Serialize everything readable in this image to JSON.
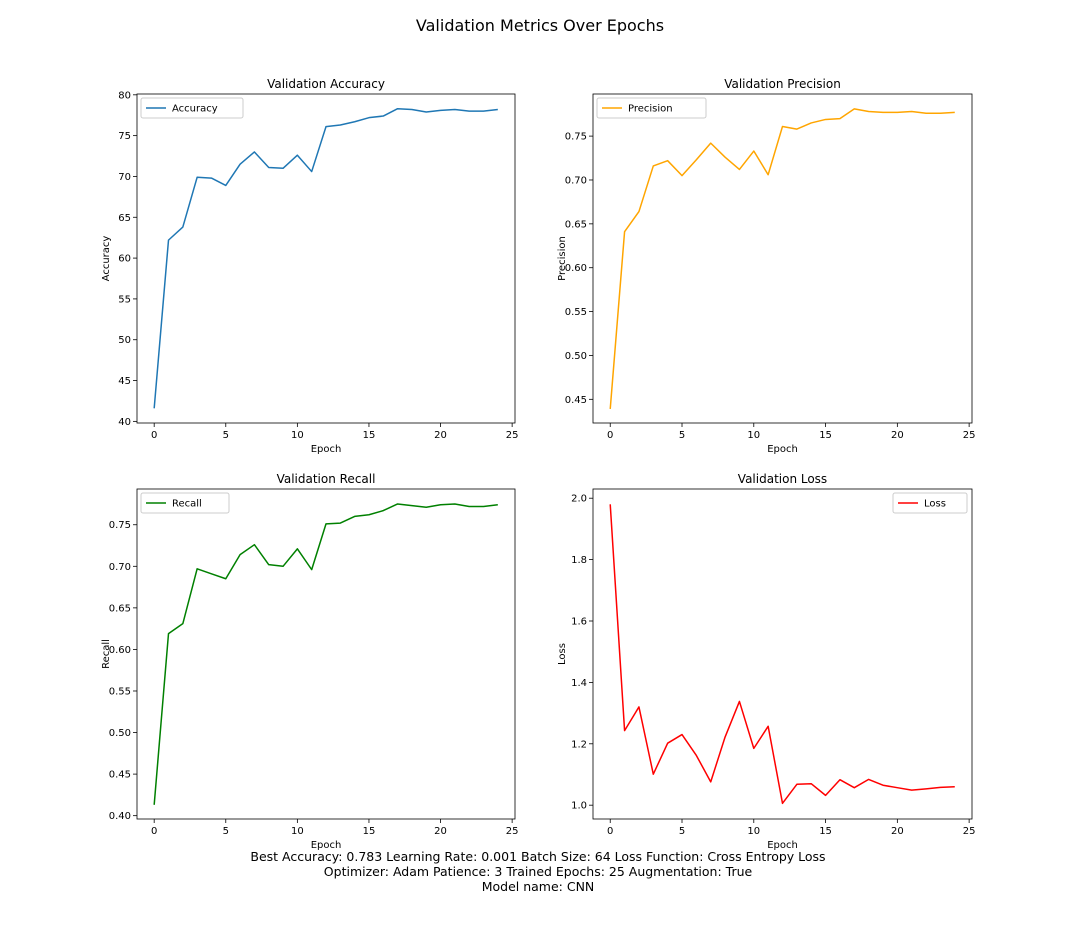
{
  "figure": {
    "title": "Validation Metrics Over Epochs",
    "footer": [
      "Best Accuracy: 0.783 Learning Rate: 0.001 Batch Size: 64 Loss Function: Cross Entropy Loss",
      "Optimizer: Adam Patience: 3 Trained Epochs: 25 Augmentation: True",
      "Model name: CNN"
    ]
  },
  "chart_data": [
    {
      "id": "accuracy",
      "type": "line",
      "title": "Validation Accuracy",
      "xlabel": "Epoch",
      "ylabel": "Accuracy",
      "xlim": [
        -1.2,
        25.2
      ],
      "ylim": [
        39.8,
        80.1
      ],
      "xticks": [
        0,
        5,
        10,
        15,
        20,
        25
      ],
      "yticks": [
        40,
        45,
        50,
        55,
        60,
        65,
        70,
        75,
        80
      ],
      "ytick_labels": [
        "40",
        "45",
        "50",
        "55",
        "60",
        "65",
        "70",
        "75",
        "80"
      ],
      "legend_loc": "upper-left",
      "grid": false,
      "series": [
        {
          "name": "Accuracy",
          "color": "#1f77b4",
          "x": [
            0,
            1,
            2,
            3,
            4,
            5,
            6,
            7,
            8,
            9,
            10,
            11,
            12,
            13,
            14,
            15,
            16,
            17,
            18,
            19,
            20,
            21,
            22,
            23,
            24
          ],
          "y": [
            41.6,
            62.2,
            63.8,
            69.9,
            69.8,
            68.9,
            71.5,
            73.0,
            71.1,
            71.0,
            72.6,
            70.6,
            76.1,
            76.3,
            76.7,
            77.2,
            77.4,
            78.3,
            78.2,
            77.9,
            78.1,
            78.2,
            78.0,
            78.0,
            78.2
          ]
        }
      ]
    },
    {
      "id": "precision",
      "type": "line",
      "title": "Validation Precision",
      "xlabel": "Epoch",
      "ylabel": "Precision",
      "xlim": [
        -1.2,
        25.2
      ],
      "ylim": [
        0.423,
        0.798
      ],
      "xticks": [
        0,
        5,
        10,
        15,
        20,
        25
      ],
      "yticks": [
        0.45,
        0.5,
        0.55,
        0.6,
        0.65,
        0.7,
        0.75
      ],
      "ytick_labels": [
        "0.45",
        "0.50",
        "0.55",
        "0.60",
        "0.65",
        "0.70",
        "0.75"
      ],
      "legend_loc": "upper-left",
      "grid": false,
      "series": [
        {
          "name": "Precision",
          "color": "#ffa500",
          "x": [
            0,
            1,
            2,
            3,
            4,
            5,
            6,
            7,
            8,
            9,
            10,
            11,
            12,
            13,
            14,
            15,
            16,
            17,
            18,
            19,
            20,
            21,
            22,
            23,
            24
          ],
          "y": [
            0.439,
            0.641,
            0.664,
            0.716,
            0.722,
            0.705,
            0.723,
            0.742,
            0.726,
            0.712,
            0.733,
            0.706,
            0.761,
            0.758,
            0.765,
            0.769,
            0.77,
            0.781,
            0.778,
            0.777,
            0.777,
            0.778,
            0.776,
            0.776,
            0.777
          ]
        }
      ]
    },
    {
      "id": "recall",
      "type": "line",
      "title": "Validation Recall",
      "xlabel": "Epoch",
      "ylabel": "Recall",
      "xlim": [
        -1.2,
        25.2
      ],
      "ylim": [
        0.396,
        0.793
      ],
      "xticks": [
        0,
        5,
        10,
        15,
        20,
        25
      ],
      "yticks": [
        0.4,
        0.45,
        0.5,
        0.55,
        0.6,
        0.65,
        0.7,
        0.75
      ],
      "ytick_labels": [
        "0.40",
        "0.45",
        "0.50",
        "0.55",
        "0.60",
        "0.65",
        "0.70",
        "0.75"
      ],
      "legend_loc": "upper-left",
      "grid": false,
      "series": [
        {
          "name": "Recall",
          "color": "#008000",
          "x": [
            0,
            1,
            2,
            3,
            4,
            5,
            6,
            7,
            8,
            9,
            10,
            11,
            12,
            13,
            14,
            15,
            16,
            17,
            18,
            19,
            20,
            21,
            22,
            23,
            24
          ],
          "y": [
            0.413,
            0.619,
            0.631,
            0.697,
            0.691,
            0.685,
            0.714,
            0.726,
            0.702,
            0.7,
            0.721,
            0.696,
            0.751,
            0.752,
            0.76,
            0.762,
            0.767,
            0.775,
            0.773,
            0.771,
            0.774,
            0.775,
            0.772,
            0.772,
            0.774
          ]
        }
      ]
    },
    {
      "id": "loss",
      "type": "line",
      "title": "Validation Loss",
      "xlabel": "Epoch",
      "ylabel": "Loss",
      "xlim": [
        -1.2,
        25.2
      ],
      "ylim": [
        0.955,
        2.03
      ],
      "xticks": [
        0,
        5,
        10,
        15,
        20,
        25
      ],
      "yticks": [
        1.0,
        1.2,
        1.4,
        1.6,
        1.8,
        2.0
      ],
      "ytick_labels": [
        "1.0",
        "1.2",
        "1.4",
        "1.6",
        "1.8",
        "2.0"
      ],
      "legend_loc": "upper-right",
      "grid": false,
      "series": [
        {
          "name": "Loss",
          "color": "#ff0000",
          "x": [
            0,
            1,
            2,
            3,
            4,
            5,
            6,
            7,
            8,
            9,
            10,
            11,
            12,
            13,
            14,
            15,
            16,
            17,
            18,
            19,
            20,
            21,
            22,
            23,
            24
          ],
          "y": [
            1.98,
            1.243,
            1.32,
            1.101,
            1.202,
            1.23,
            1.162,
            1.076,
            1.222,
            1.338,
            1.185,
            1.257,
            1.006,
            1.068,
            1.07,
            1.032,
            1.083,
            1.057,
            1.084,
            1.065,
            1.057,
            1.049,
            1.053,
            1.058,
            1.06
          ]
        }
      ]
    }
  ]
}
